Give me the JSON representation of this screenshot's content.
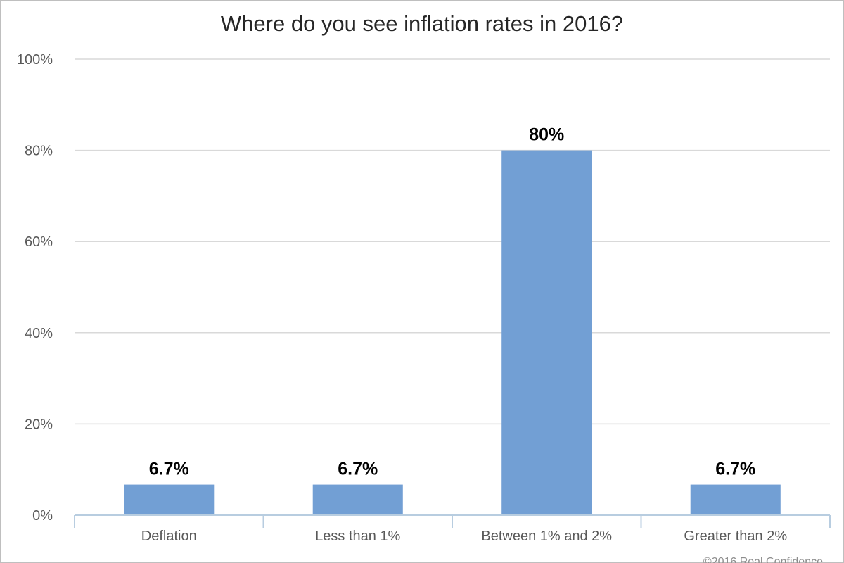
{
  "chart_data": {
    "type": "bar",
    "title": "Where do you see inflation rates in 2016?",
    "categories": [
      "Deflation",
      "Less than 1%",
      "Between 1% and 2%",
      "Greater than 2%"
    ],
    "values": [
      6.7,
      6.7,
      80,
      6.7
    ],
    "data_labels": [
      "6.7%",
      "6.7%",
      "80%",
      "6.7%"
    ],
    "y_ticks": [
      {
        "value": 0,
        "label": "0%"
      },
      {
        "value": 20,
        "label": "20%"
      },
      {
        "value": 40,
        "label": "40%"
      },
      {
        "value": 60,
        "label": "60%"
      },
      {
        "value": 80,
        "label": "80%"
      },
      {
        "value": 100,
        "label": "100%"
      }
    ],
    "ylim": [
      0,
      100
    ],
    "xlabel": "",
    "ylabel": "",
    "grid": true,
    "legend": "none",
    "colors": {
      "bar": "#729fd4",
      "grid": "#d9d9d9",
      "axis": "#b8cde0"
    }
  },
  "footer": {
    "copyright": "©2016 Real Confidence"
  }
}
